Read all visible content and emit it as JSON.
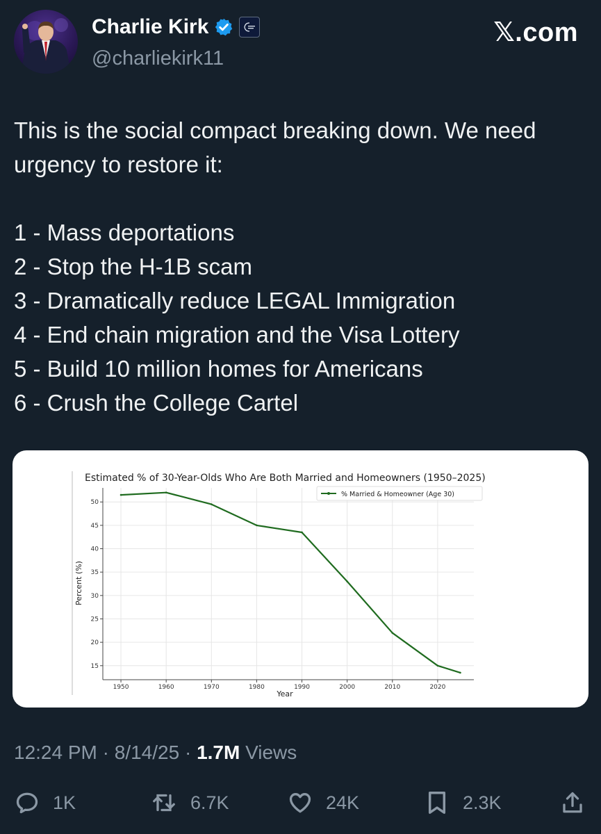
{
  "author": {
    "name": "Charlie Kirk",
    "handle": "@charliekirk11"
  },
  "brand": "𝕏.com",
  "tweet": {
    "intro": "This is the social compact breaking down. We need urgency to restore it:",
    "items": [
      "1 - Mass deportations",
      "2 - Stop the H-1B scam",
      "3 - Dramatically reduce LEGAL Immigration",
      "4 - End chain migration and the Visa Lottery",
      "5 - Build 10 million homes for Americans",
      "6 - Crush the College Cartel"
    ]
  },
  "meta": {
    "time": "12:24 PM",
    "separator": "·",
    "date": "8/14/25",
    "views_count": "1.7M",
    "views_label": "Views"
  },
  "actions": {
    "replies": "1K",
    "reposts": "6.7K",
    "likes": "24K",
    "bookmarks": "2.3K"
  },
  "colors": {
    "background": "#15202b",
    "line": "#1f6b1f",
    "muted": "#8b98a5",
    "verified": "#1d9bf0"
  },
  "chart_data": {
    "type": "line",
    "title": "Estimated % of 30-Year-Olds Who Are Both Married and Homeowners (1950–2025)",
    "xlabel": "Year",
    "ylabel": "Percent (%)",
    "x_ticks": [
      1950,
      1960,
      1970,
      1980,
      1990,
      2000,
      2010,
      2020
    ],
    "y_ticks": [
      15,
      20,
      25,
      30,
      35,
      40,
      45,
      50
    ],
    "xlim": [
      1946,
      2028
    ],
    "ylim": [
      12,
      53
    ],
    "legend_position": "top-right",
    "series": [
      {
        "name": "% Married & Homeowner (Age 30)",
        "x": [
          1950,
          1960,
          1970,
          1980,
          1990,
          2000,
          2010,
          2020,
          2025
        ],
        "y": [
          51.5,
          52,
          49.5,
          45,
          43.5,
          33,
          22,
          15,
          13.5
        ]
      }
    ]
  }
}
